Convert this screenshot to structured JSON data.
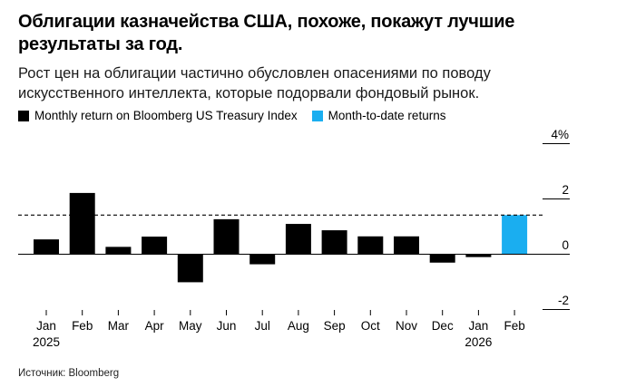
{
  "title": "Облигации казначейства США, похоже, покажут лучшие результаты за год.",
  "subtitle": "Рост цен на облигации частично обусловлен опасениями по поводу искусственного интеллекта, которые подорвали фондовый рынок.",
  "source": "Источник: Bloomberg",
  "legend": [
    {
      "label": "Monthly return on Bloomberg US Treasury Index",
      "color": "#000000"
    },
    {
      "label": "Month-to-date returns",
      "color": "#1aaef0"
    }
  ],
  "chart_data": {
    "type": "bar",
    "categories": [
      "Jan",
      "Feb",
      "Mar",
      "Apr",
      "May",
      "Jun",
      "Jul",
      "Aug",
      "Sep",
      "Oct",
      "Nov",
      "Dec",
      "Jan",
      "Feb"
    ],
    "year_labels": [
      {
        "index": 0,
        "label": "2025"
      },
      {
        "index": 12,
        "label": "2026"
      }
    ],
    "values": [
      0.52,
      2.2,
      0.25,
      0.62,
      -1.03,
      1.25,
      -0.38,
      1.08,
      0.85,
      0.63,
      0.63,
      -0.32,
      -0.12,
      1.4
    ],
    "bar_colors": [
      "#000000",
      "#000000",
      "#000000",
      "#000000",
      "#000000",
      "#000000",
      "#000000",
      "#000000",
      "#000000",
      "#000000",
      "#000000",
      "#000000",
      "#000000",
      "#1aaef0"
    ],
    "reference_line": 1.4,
    "yticks": [
      -2,
      0,
      2,
      4
    ],
    "ytick_labels": [
      "-2",
      "0",
      "2",
      "4%"
    ],
    "ylim": [
      -2,
      4
    ],
    "xlabel": "",
    "ylabel": "",
    "grid": false,
    "legend_position": "top-left"
  }
}
